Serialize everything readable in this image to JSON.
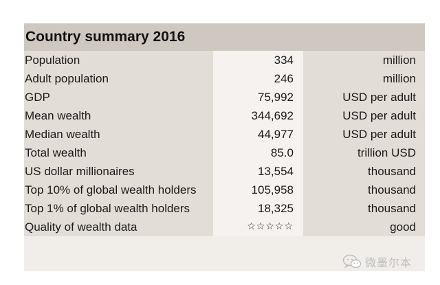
{
  "title": "Country summary 2016",
  "rows": [
    {
      "label": "Population",
      "value": "334",
      "unit": "million"
    },
    {
      "label": "Adult population",
      "value": "246",
      "unit": "million"
    },
    {
      "label": "GDP",
      "value": "75,992",
      "unit": "USD per adult"
    },
    {
      "label": "Mean wealth",
      "value": "344,692",
      "unit": "USD per adult"
    },
    {
      "label": "Median wealth",
      "value": "44,977",
      "unit": "USD per adult"
    },
    {
      "label": "Total wealth",
      "value": "85.0",
      "unit": "trillion USD"
    },
    {
      "label": "US dollar millionaires",
      "value": "13,554",
      "unit": "thousand"
    },
    {
      "label": "Top 10% of global wealth holders",
      "value": "105,958",
      "unit": "thousand"
    },
    {
      "label": "Top 1% of global wealth holders",
      "value": "18,325",
      "unit": "thousand"
    },
    {
      "label": "Quality of wealth data",
      "value": "☆☆☆☆☆",
      "unit": "good"
    }
  ],
  "watermark": {
    "icon": "wechat-icon",
    "text": "微墨尔本"
  },
  "colors": {
    "title_bar": "#cfc8c0",
    "shaded_column": "#e3ddd7",
    "light_column": "#f5f2ef",
    "panel_background": "#f1eeea"
  }
}
